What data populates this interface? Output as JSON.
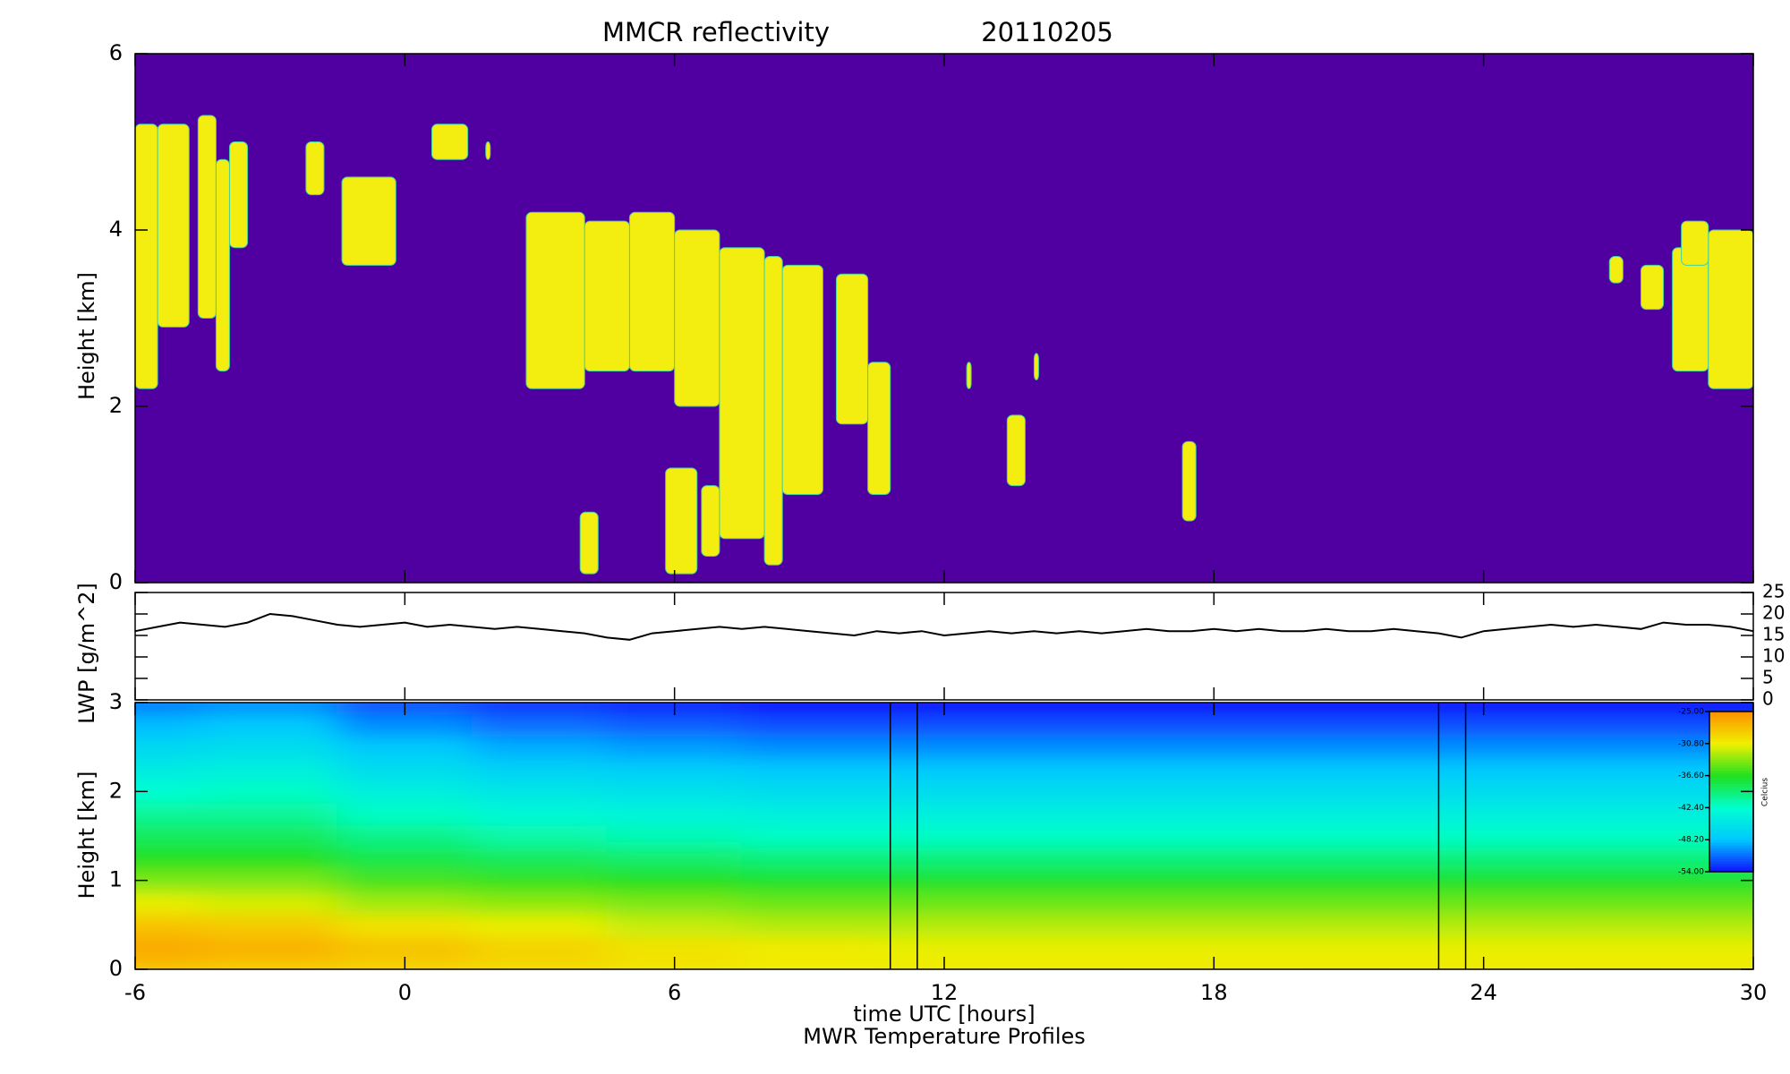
{
  "chart_data": [
    {
      "type": "heatmap",
      "title": "MMCR reflectivity",
      "date": "20110205",
      "ylabel": "Height [km]",
      "background": "#5000a0",
      "color": "#f4ee10",
      "ylim": [
        0,
        6
      ],
      "yticks": [
        0,
        2,
        4,
        6
      ],
      "x0": [
        -6,
        -5.5,
        -4.6,
        -4.2,
        -3.9,
        -2.2,
        -1.4,
        0.6,
        1.8,
        2.7,
        4,
        5,
        6,
        7,
        8,
        8.4,
        9.6,
        10.3,
        3.9,
        5.8,
        6.6,
        12.5,
        13.4,
        14,
        17.3,
        26.8,
        27.5,
        28.2,
        29,
        28.4
      ],
      "x1": [
        -5.5,
        -4.8,
        -4.2,
        -3.9,
        -3.5,
        -1.8,
        -0.2,
        1.4,
        1.9,
        4,
        5,
        6,
        7,
        8,
        8.4,
        9.3,
        10.3,
        10.8,
        4.3,
        6.5,
        7,
        12.6,
        13.8,
        14.1,
        17.6,
        27.1,
        28,
        29,
        30,
        29
      ],
      "base": [
        2.2,
        2.9,
        3.0,
        2.4,
        3.8,
        4.4,
        3.6,
        4.8,
        4.8,
        2.2,
        2.4,
        2.4,
        2.0,
        0.5,
        0.2,
        1.0,
        1.8,
        1.0,
        0.1,
        0.1,
        0.3,
        2.2,
        1.1,
        2.3,
        0.7,
        3.4,
        3.1,
        2.4,
        2.2,
        3.6
      ],
      "top": [
        5.2,
        5.2,
        5.3,
        4.8,
        5.0,
        5.0,
        4.6,
        5.2,
        5.0,
        4.2,
        4.1,
        4.2,
        4.0,
        3.8,
        3.7,
        3.6,
        3.5,
        2.5,
        0.8,
        1.3,
        1.1,
        2.5,
        1.9,
        2.6,
        1.6,
        3.7,
        3.6,
        3.8,
        4.0,
        4.1
      ]
    },
    {
      "type": "line",
      "ylabel": "LWP [g/m^2]",
      "color": "#000000",
      "y2lim": [
        0,
        25
      ],
      "y2ticks": [
        0,
        5,
        10,
        15,
        20,
        25
      ],
      "x": [
        -6,
        -5.5,
        -5,
        -4.5,
        -4,
        -3.5,
        -3,
        -2.5,
        -2,
        -1.5,
        -1,
        -0.5,
        0,
        0.5,
        1,
        1.5,
        2,
        2.5,
        3,
        3.5,
        4,
        4.5,
        5,
        5.5,
        6,
        6.5,
        7,
        7.5,
        8,
        8.5,
        9,
        9.5,
        10,
        10.5,
        11,
        11.5,
        12,
        12.5,
        13,
        13.5,
        14,
        14.5,
        15,
        15.5,
        16,
        16.5,
        17,
        17.5,
        18,
        18.5,
        19,
        19.5,
        20,
        20.5,
        21,
        21.5,
        22,
        22.5,
        23,
        23.5,
        24,
        24.5,
        25,
        25.5,
        26,
        26.5,
        27,
        27.5,
        28,
        28.5,
        29,
        29.5,
        30
      ],
      "values": [
        16,
        17,
        18,
        17.5,
        17,
        18,
        20,
        19.5,
        18.5,
        17.5,
        17,
        17.5,
        18,
        17,
        17.5,
        17,
        16.5,
        17,
        16.5,
        16,
        15.5,
        14.5,
        14,
        15.5,
        16,
        16.5,
        17,
        16.5,
        17,
        16.5,
        16,
        15.5,
        15,
        16,
        15.5,
        16,
        15,
        15.5,
        16,
        15.5,
        16,
        15.5,
        16,
        15.5,
        16,
        16.5,
        16,
        16,
        16.5,
        16,
        16.5,
        16,
        16,
        16.5,
        16,
        16,
        16.5,
        16,
        15.5,
        14.5,
        16,
        16.5,
        17,
        17.5,
        17,
        17.5,
        17,
        16.5,
        18,
        17.5,
        17.5,
        17,
        16
      ]
    },
    {
      "type": "contour",
      "ylabel": "Height [km]",
      "xlabel": "time UTC [hours]",
      "subtitle": "MWR Temperature Profiles",
      "xlim": [
        -6,
        30
      ],
      "xticks": [
        -6,
        0,
        6,
        12,
        18,
        24,
        30
      ],
      "ylim": [
        0,
        3
      ],
      "yticks": [
        0,
        1,
        2,
        3
      ],
      "x": [
        -6,
        -3,
        0,
        3,
        6,
        9,
        12,
        15,
        18,
        21,
        24,
        27,
        30
      ],
      "y": [
        0,
        0.25,
        0.5,
        0.75,
        1,
        1.25,
        1.5,
        1.75,
        2,
        2.25,
        2.5,
        2.75,
        3
      ],
      "z": [
        [
          -28,
          -28.5,
          -29,
          -29.5,
          -30,
          -30.5,
          -30.5,
          -30.5,
          -30.5,
          -30.5,
          -30.5,
          -30.5,
          -30.5
        ],
        [
          -26.5,
          -27,
          -28,
          -29,
          -30,
          -30.5,
          -31,
          -31,
          -31,
          -31,
          -31,
          -31,
          -31
        ],
        [
          -28,
          -28.5,
          -30,
          -31,
          -32,
          -32.5,
          -32.5,
          -32.5,
          -32.5,
          -32.5,
          -32.5,
          -32.5,
          -32.5
        ],
        [
          -31,
          -31.5,
          -33,
          -33.5,
          -34,
          -34.5,
          -34.5,
          -34.5,
          -34.5,
          -34.5,
          -34.5,
          -34.5,
          -34.5
        ],
        [
          -34,
          -34,
          -35.5,
          -36,
          -36.5,
          -37,
          -37,
          -37,
          -37,
          -37,
          -37,
          -37,
          -37
        ],
        [
          -36.5,
          -36.5,
          -38,
          -38.5,
          -39,
          -39.5,
          -39.5,
          -39.5,
          -39.5,
          -39.5,
          -39.5,
          -39.5,
          -39.5
        ],
        [
          -38.5,
          -38.5,
          -40,
          -41,
          -41.5,
          -42,
          -42,
          -42,
          -42,
          -42,
          -42,
          -42,
          -42
        ],
        [
          -40.5,
          -40.5,
          -42,
          -43,
          -43.5,
          -44,
          -44,
          -44,
          -44,
          -44,
          -44,
          -44,
          -44
        ],
        [
          -42.5,
          -42,
          -44,
          -45,
          -45.5,
          -46,
          -46,
          -46,
          -46,
          -46,
          -46,
          -46,
          -46
        ],
        [
          -44.5,
          -44,
          -46,
          -47,
          -47.5,
          -48,
          -48,
          -48,
          -48,
          -48,
          -48,
          -48,
          -48
        ],
        [
          -46.5,
          -46,
          -48,
          -49,
          -49.5,
          -50,
          -50,
          -50,
          -50,
          -50,
          -50,
          -50,
          -50
        ],
        [
          -48.5,
          -48,
          -50,
          -51,
          -51.5,
          -52,
          -52,
          -52,
          -52,
          -52,
          -52,
          -52,
          -52
        ],
        [
          -50.5,
          -50,
          -52,
          -53,
          -53.5,
          -54,
          -54,
          -54,
          -54,
          -54,
          -54,
          -54,
          -54
        ]
      ],
      "gaps": [
        [
          10.8,
          11.4
        ],
        [
          23,
          23.6
        ]
      ],
      "colorbar_label": "Celcius",
      "clim": [
        -54,
        -25
      ],
      "colorbar_ticks": [
        {
          "value": -25,
          "label": "-25.00"
        },
        {
          "value": -30.8,
          "label": "-30.80"
        },
        {
          "value": -36.6,
          "label": "-36.60"
        },
        {
          "value": -42.4,
          "label": "-42.40"
        },
        {
          "value": -48.2,
          "label": "-48.20"
        },
        {
          "value": -54,
          "label": "-54.00"
        }
      ],
      "colormap": [
        "#1010ff",
        "#00c8ff",
        "#00ffd0",
        "#20e020",
        "#f0f000",
        "#ff9000"
      ]
    }
  ]
}
